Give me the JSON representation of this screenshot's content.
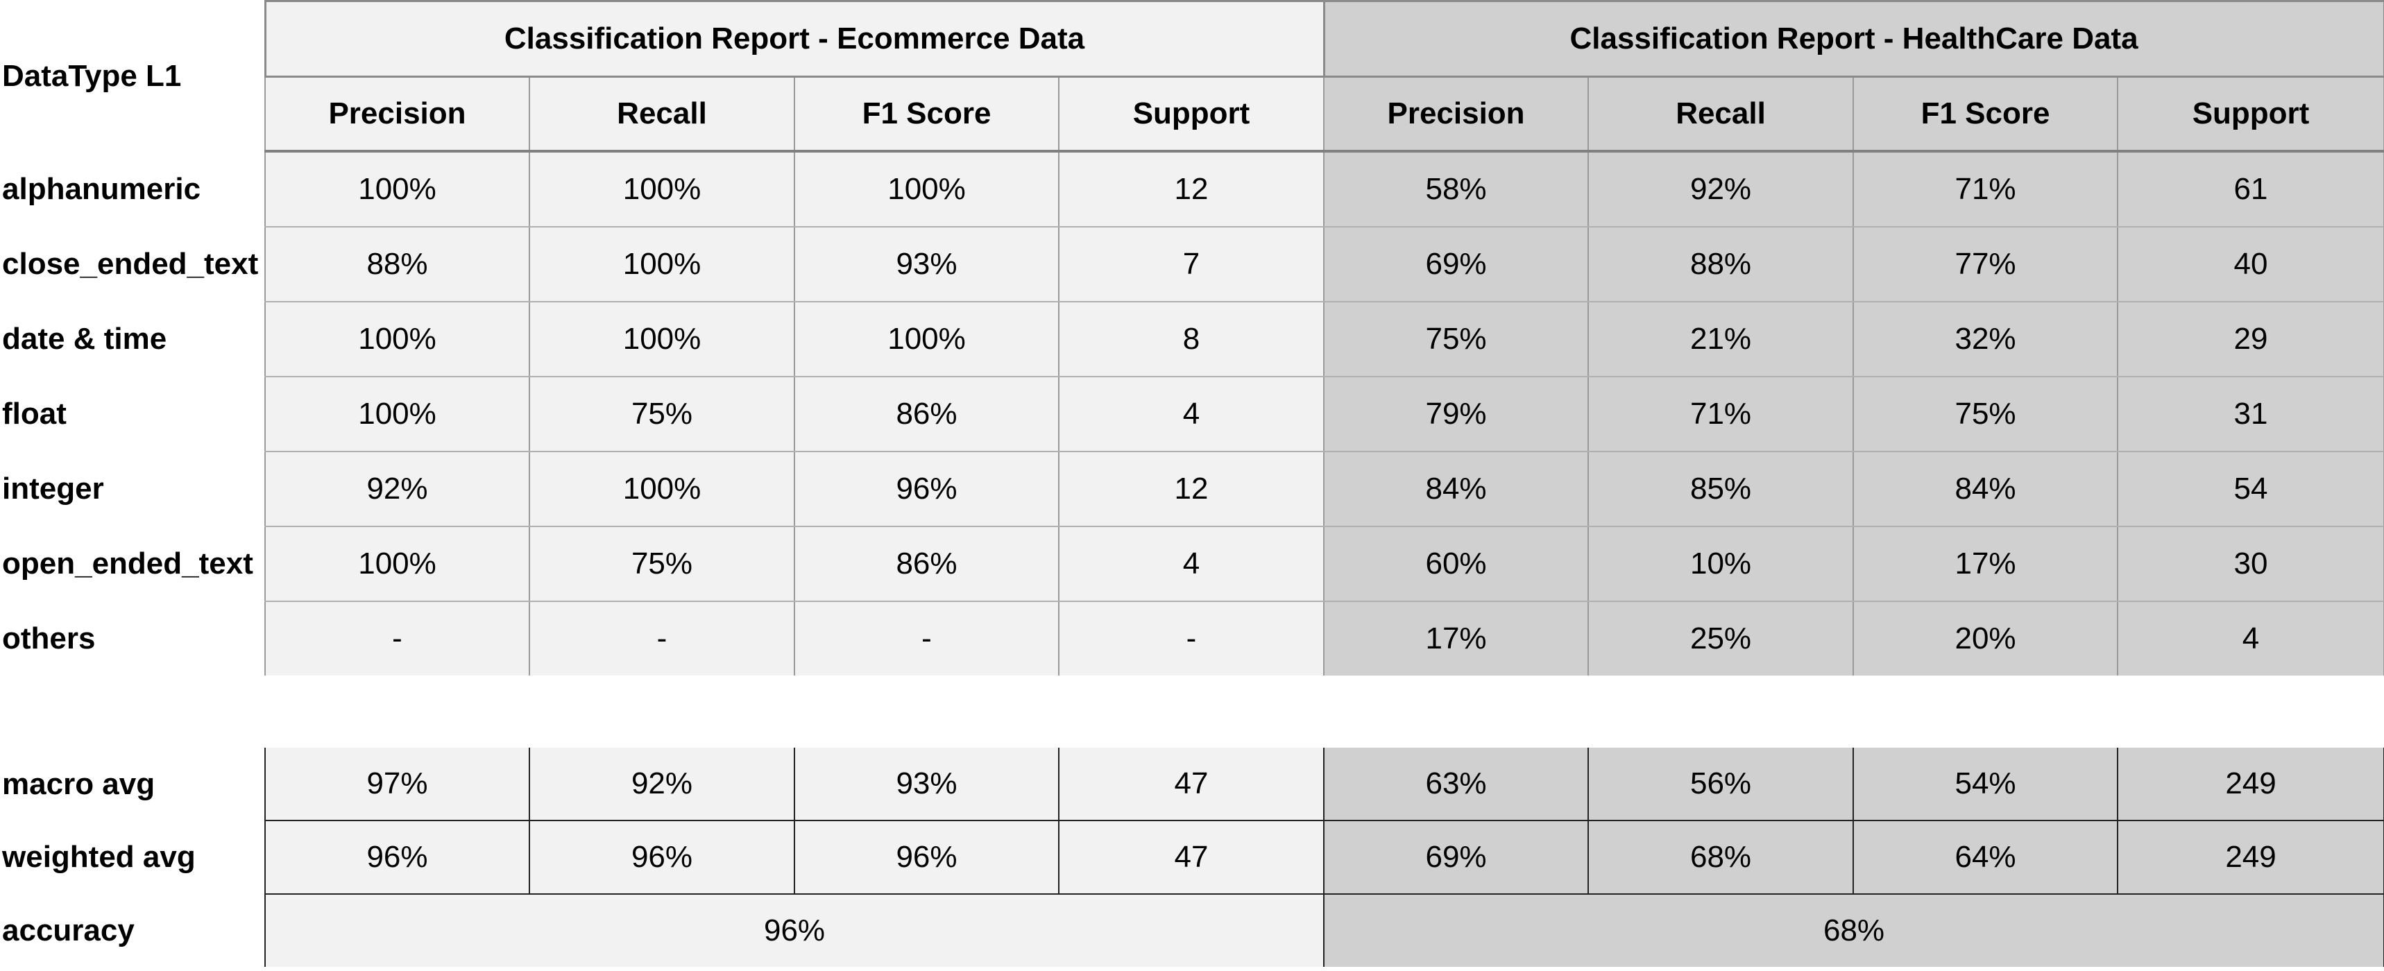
{
  "table": {
    "row_header_label": "DataType L1",
    "groups": [
      {
        "title": "Classification Report - Ecommerce Data"
      },
      {
        "title": "Classification Report - HealthCare Data"
      }
    ],
    "columns": [
      "Precision",
      "Recall",
      "F1 Score",
      "Support",
      "Precision",
      "Recall",
      "F1 Score",
      "Support"
    ],
    "rows": [
      {
        "label": "alphanumeric",
        "values": [
          "100%",
          "100%",
          "100%",
          "12",
          "58%",
          "92%",
          "71%",
          "61"
        ]
      },
      {
        "label": "close_ended_text",
        "values": [
          "88%",
          "100%",
          "93%",
          "7",
          "69%",
          "88%",
          "77%",
          "40"
        ]
      },
      {
        "label": "date & time",
        "values": [
          "100%",
          "100%",
          "100%",
          "8",
          "75%",
          "21%",
          "32%",
          "29"
        ]
      },
      {
        "label": "float",
        "values": [
          "100%",
          "75%",
          "86%",
          "4",
          "79%",
          "71%",
          "75%",
          "31"
        ]
      },
      {
        "label": "integer",
        "values": [
          "92%",
          "100%",
          "96%",
          "12",
          "84%",
          "85%",
          "84%",
          "54"
        ]
      },
      {
        "label": "open_ended_text",
        "values": [
          "100%",
          "75%",
          "86%",
          "4",
          "60%",
          "10%",
          "17%",
          "30"
        ]
      },
      {
        "label": "others",
        "values": [
          "-",
          "-",
          "-",
          "-",
          "17%",
          "25%",
          "20%",
          "4"
        ]
      }
    ],
    "summary_rows": [
      {
        "label": "macro avg",
        "values": [
          "97%",
          "92%",
          "93%",
          "47",
          "63%",
          "56%",
          "54%",
          "249"
        ]
      },
      {
        "label": "weighted avg",
        "values": [
          "96%",
          "96%",
          "96%",
          "47",
          "69%",
          "68%",
          "64%",
          "249"
        ]
      }
    ],
    "accuracy": {
      "label": "accuracy",
      "ecommerce": "96%",
      "healthcare": "68%"
    }
  },
  "colors": {
    "ecommerce_fill": "#f2f2f2",
    "healthcare_fill": "#d0d0d0",
    "header_rule": "#808080"
  }
}
